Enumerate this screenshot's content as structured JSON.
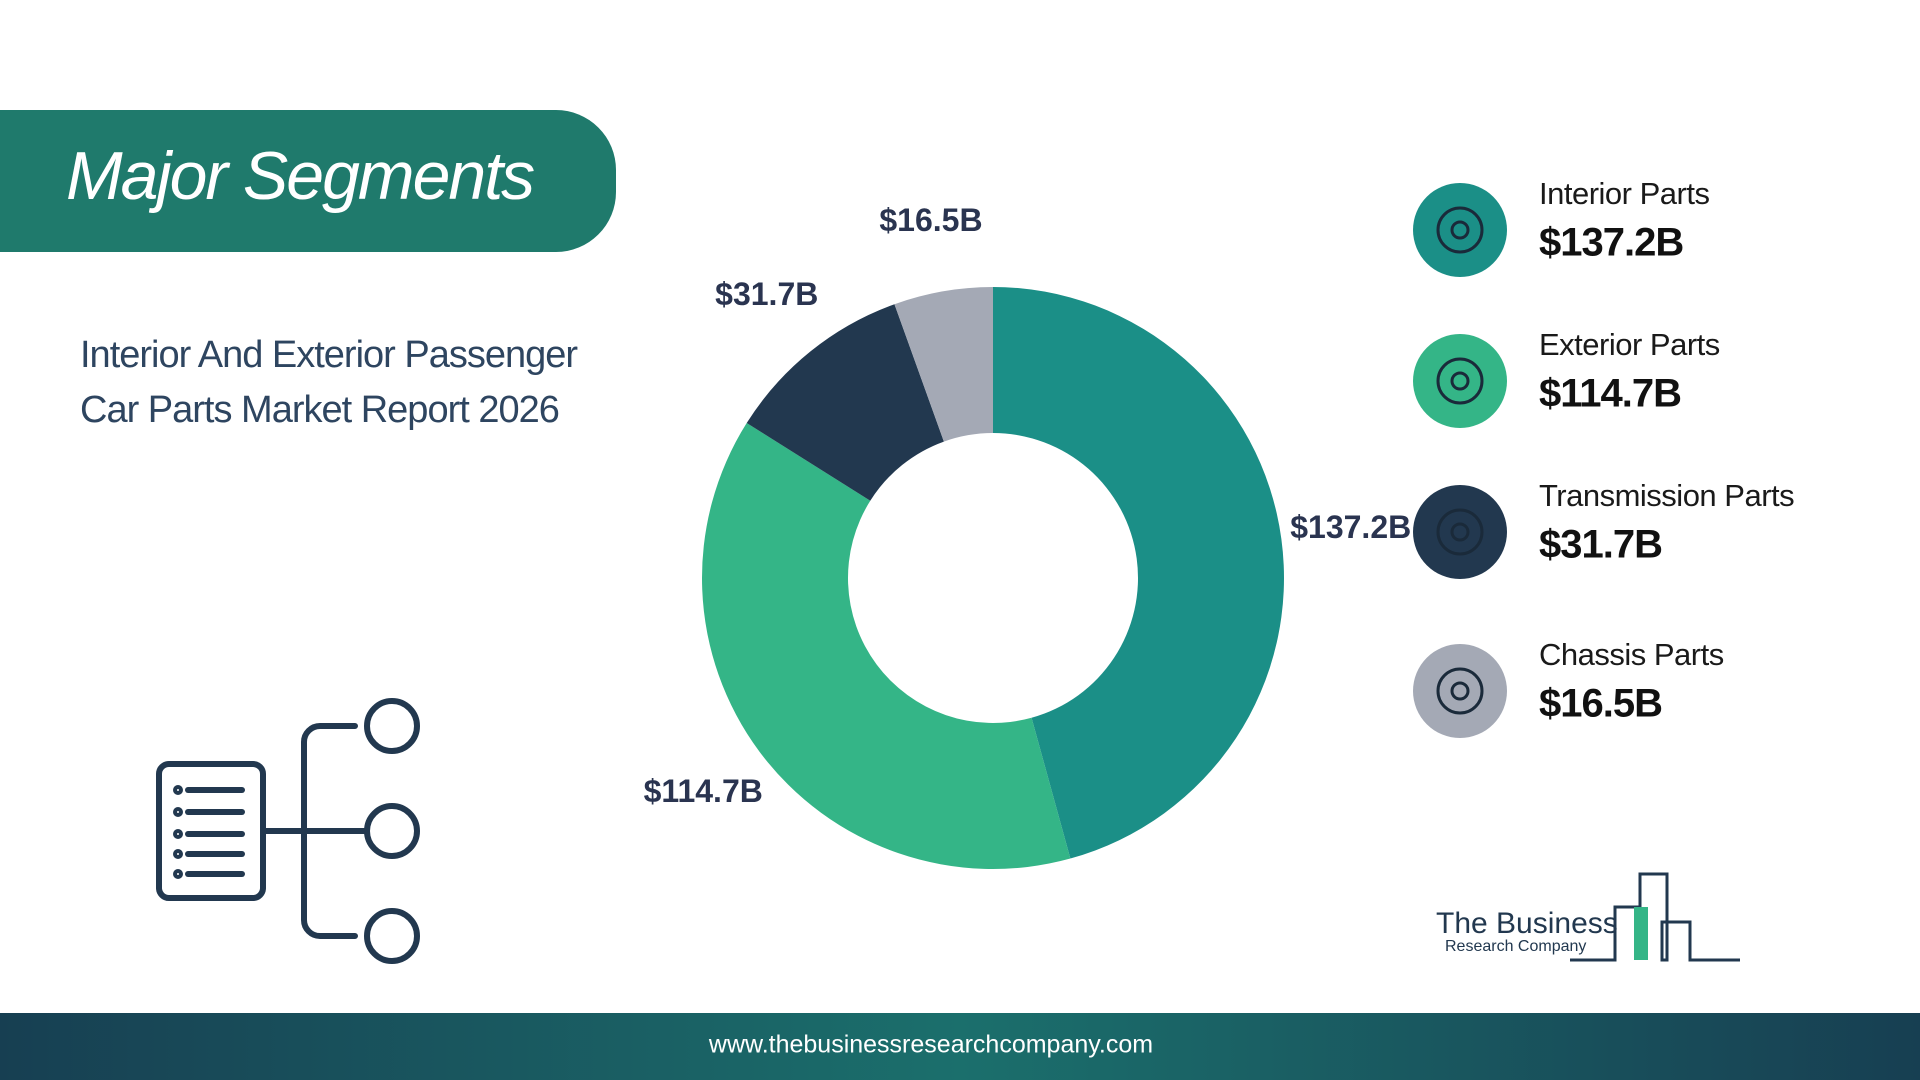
{
  "header": {
    "title": "Major Segments",
    "subtitle": [
      "Interior And Exterior Passenger",
      "Car Parts Market Report 2026"
    ]
  },
  "chart_data": {
    "type": "pie",
    "donut": true,
    "categories": [
      "Interior Parts",
      "Exterior Parts",
      "Transmission Parts",
      "Chassis Parts"
    ],
    "values": [
      137.2,
      114.7,
      31.7,
      16.5
    ],
    "value_labels": [
      "$137.2B",
      "$114.7B",
      "$31.7B",
      "$16.5B"
    ],
    "colors": [
      "#1b8f87",
      "#34b587",
      "#22384f",
      "#a4a9b5"
    ],
    "legend": "right"
  },
  "logo": [
    "The Business",
    "Research Company"
  ],
  "footer": {
    "url": "www.thebusinessresearchcompany.com"
  }
}
